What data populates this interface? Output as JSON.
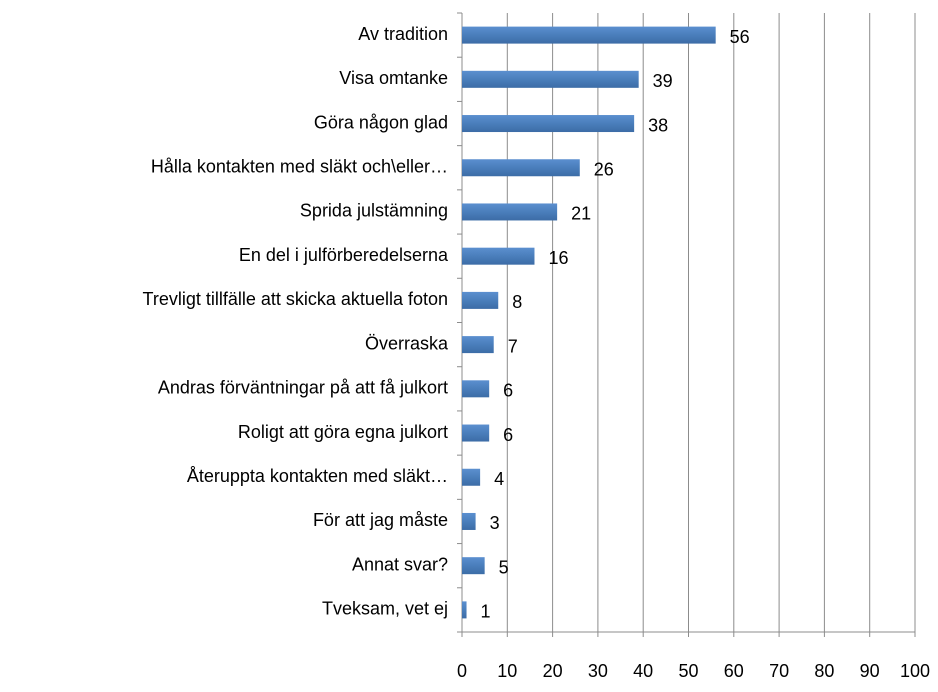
{
  "chart_data": {
    "type": "bar",
    "orientation": "horizontal",
    "categories": [
      "Av tradition",
      "Visa omtanke",
      "Göra någon glad",
      "Hålla kontakten med släkt och\\eller…",
      "Sprida julstämning",
      "En del i julförberedelserna",
      "Trevligt tillfälle att skicka aktuella foton",
      "Överraska",
      "Andras förväntningar på att få julkort",
      "Roligt att göra egna julkort",
      "Återuppta kontakten med släkt…",
      "För att jag måste",
      "Annat svar?",
      "Tveksam, vet ej"
    ],
    "values": [
      56,
      39,
      38,
      26,
      21,
      16,
      8,
      7,
      6,
      6,
      4,
      3,
      5,
      1
    ],
    "color": "#4a7ebb",
    "xlim": [
      0,
      100
    ],
    "xticks": [
      0,
      10,
      20,
      30,
      40,
      50,
      60,
      70,
      80,
      90,
      100
    ],
    "grid": true
  }
}
